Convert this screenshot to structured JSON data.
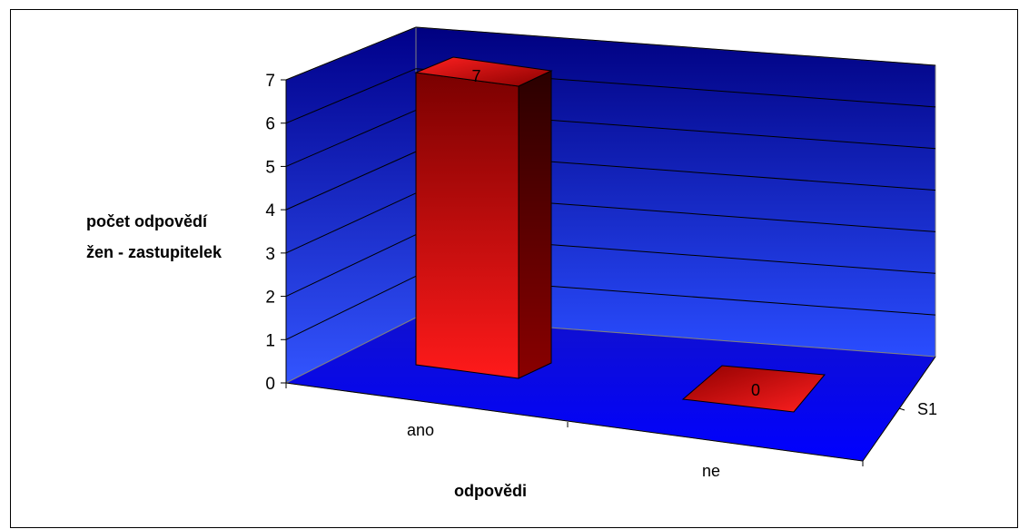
{
  "colors": {
    "wall_top": "#000080",
    "wall_bottom": "#1a3cff",
    "floor": "#0000ff",
    "bar_light": "#ff1a1a",
    "bar_dark": "#7a0000",
    "bar_side": "#3a0000"
  },
  "chart_data": {
    "type": "bar",
    "style": "3d-column",
    "categories": [
      "ano",
      "ne"
    ],
    "series": [
      {
        "name": "S1",
        "values": [
          7,
          0
        ]
      }
    ],
    "data_labels": [
      "7",
      "0"
    ],
    "xlabel": "odpovědi",
    "ylabel_lines": [
      "počet odpovědí",
      "žen - zastupitelek"
    ],
    "y_ticks": [
      "0",
      "1",
      "2",
      "3",
      "4",
      "5",
      "6",
      "7"
    ],
    "ylim": [
      0,
      7
    ],
    "grid": true,
    "depth_axis_label": "S1"
  }
}
